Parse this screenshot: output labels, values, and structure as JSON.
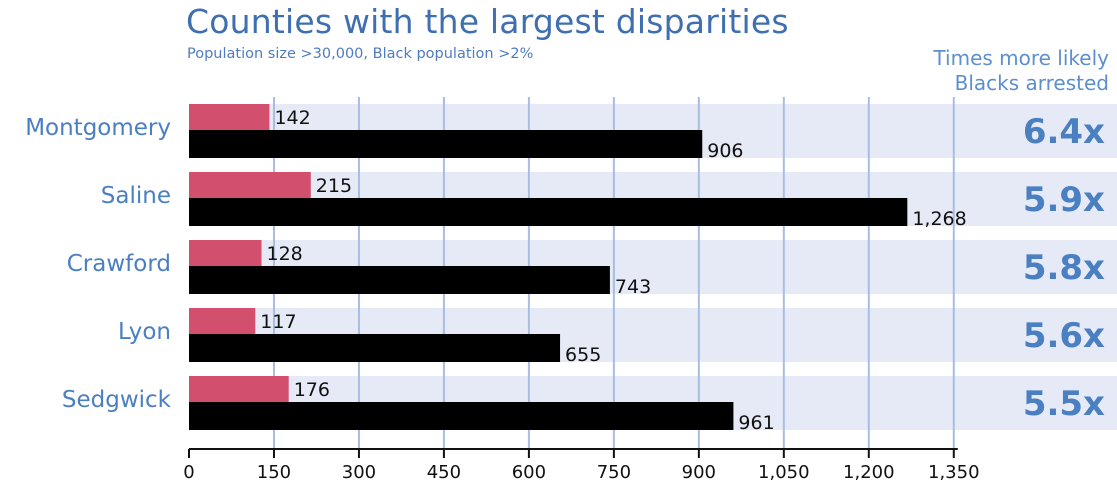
{
  "chart_data": {
    "type": "bar",
    "title": "Counties with the largest disparities",
    "subtitle": "Population size >30,000, Black population >2%",
    "ratio_header": [
      "Times more likely",
      "Blacks arrested"
    ],
    "categories": [
      "Montgomery",
      "Saline",
      "Crawford",
      "Lyon",
      "Sedgwick"
    ],
    "series": [
      {
        "values": [
          142,
          215,
          128,
          117,
          176
        ],
        "color": "#d2506e"
      },
      {
        "values": [
          906,
          1268,
          743,
          655,
          961
        ],
        "color": "#000000"
      }
    ],
    "value_labels": [
      [
        "142",
        "215",
        "128",
        "117",
        "176"
      ],
      [
        "906",
        "1,268",
        "743",
        "655",
        "961"
      ]
    ],
    "ratios": [
      "6.4x",
      "5.9x",
      "5.8x",
      "5.6x",
      "5.5x"
    ],
    "xlim": [
      0,
      1350
    ],
    "xticks": [
      0,
      150,
      300,
      450,
      600,
      750,
      900,
      1050,
      1200,
      1350
    ],
    "xtick_labels": [
      "0",
      "150",
      "300",
      "450",
      "600",
      "750",
      "900",
      "1,050",
      "1,200",
      "1,350"
    ],
    "grid": true,
    "band_color": "#e6eaf6",
    "grid_color": "#a9bde2"
  }
}
